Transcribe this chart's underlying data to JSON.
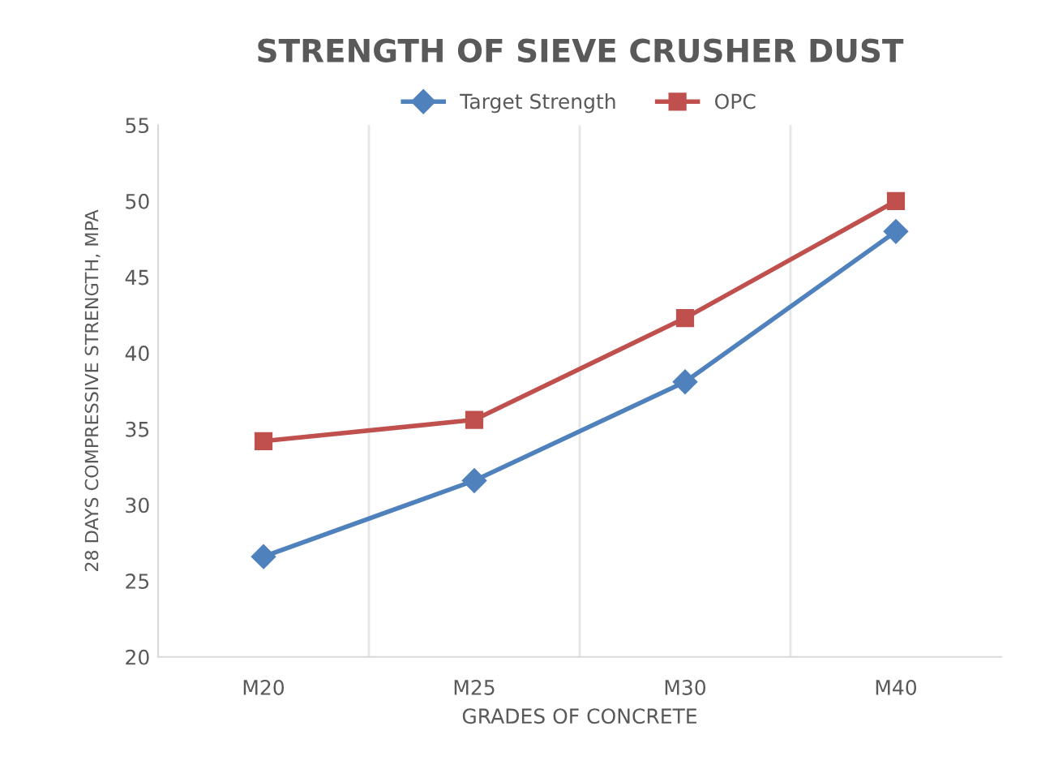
{
  "chart_data": {
    "type": "line",
    "title": "STRENGTH OF SIEVE CRUSHER DUST",
    "xlabel": "GRADES OF CONCRETE",
    "ylabel": "28 DAYS COMPRESSIVE STRENGTH, MPA",
    "categories": [
      "M20",
      "M25",
      "M30",
      "M40"
    ],
    "series": [
      {
        "name": "Target Strength",
        "color": "#4f81bd",
        "marker": "diamond",
        "values": [
          26.6,
          31.6,
          38.1,
          48.0
        ]
      },
      {
        "name": "OPC",
        "color": "#c0504d",
        "marker": "square",
        "values": [
          34.2,
          35.6,
          42.3,
          50.0
        ]
      }
    ],
    "ylim": [
      20,
      55
    ],
    "yticks": [
      20,
      25,
      30,
      35,
      40,
      45,
      50,
      55
    ],
    "grid": "x",
    "legend": "top",
    "line_style": "solid"
  }
}
